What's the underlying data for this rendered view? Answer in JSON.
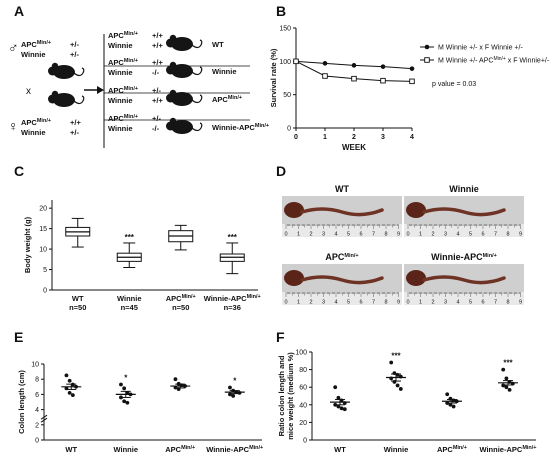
{
  "panels": {
    "A": {
      "label": "A",
      "cross_symbol": "x",
      "parents": [
        {
          "sex": "male",
          "lines": [
            [
              "APC",
              "Min/+",
              "+/-"
            ],
            [
              "Winnie",
              "",
              "+/-"
            ]
          ]
        },
        {
          "sex": "female",
          "lines": [
            [
              "APC",
              "Min/+",
              "+/+"
            ],
            [
              "Winnie",
              "",
              "+/-"
            ]
          ]
        }
      ],
      "offspring": [
        {
          "apc": "+/+",
          "winnie": "+/+",
          "name": "WT"
        },
        {
          "apc": "+/+",
          "winnie": "-/-",
          "name": "Winnie"
        },
        {
          "apc": "+/-",
          "winnie": "+/+",
          "name": "APC",
          "name_sup": "Min/+"
        },
        {
          "apc": "+/-",
          "winnie": "-/-",
          "name": "Winnie-APC",
          "name_sup": "Min/+"
        }
      ],
      "offspring_apc_label": "APC",
      "offspring_apc_sup": "Min/+",
      "offspring_winnie_label": "Winnie"
    },
    "B": {
      "label": "B"
    },
    "C": {
      "label": "C"
    },
    "D": {
      "label": "D",
      "photos": [
        {
          "title": "WT",
          "sup": ""
        },
        {
          "title": "Winnie",
          "sup": ""
        },
        {
          "title": "APC",
          "sup": "Min/+"
        },
        {
          "title": "Winnie-APC",
          "sup": "Min/+"
        }
      ],
      "ruler_ticks": [
        "0",
        "1",
        "2",
        "3",
        "4",
        "5",
        "6",
        "7",
        "8",
        "9"
      ]
    },
    "E": {
      "label": "E"
    },
    "F": {
      "label": "F"
    }
  },
  "chart_data": [
    {
      "panel": "B",
      "type": "line",
      "xlabel": "WEEK",
      "ylabel": "Survival rate (%)",
      "x": [
        0,
        1,
        2,
        3,
        4
      ],
      "xticks": [
        "0",
        "1",
        "2",
        "3",
        "4"
      ],
      "yticks": [
        "0",
        "50",
        "100",
        "150"
      ],
      "ylim": [
        0,
        150
      ],
      "xlim": [
        0,
        4
      ],
      "series": [
        {
          "name": "M Winnie +/- x F Winnie +/-",
          "marker": "filled-circle",
          "values": [
            100,
            97,
            94,
            92,
            89
          ]
        },
        {
          "name_parts": [
            "M Winnie +/- APC",
            "Min/+",
            " x F Winnie+/-"
          ],
          "marker": "open-square",
          "values": [
            100,
            78,
            74,
            71,
            70
          ]
        }
      ],
      "annotation": "p value = 0.03",
      "legend_position": "top-right"
    },
    {
      "panel": "C",
      "type": "boxplot",
      "ylabel": "Body weight (g)",
      "yticks": [
        "0",
        "5",
        "10",
        "15",
        "20"
      ],
      "ylim": [
        0,
        22
      ],
      "groups": [
        {
          "label": "WT",
          "n": "n=50",
          "sup": "",
          "min": 10.5,
          "q1": 13.2,
          "median": 14.2,
          "q3": 15.3,
          "max": 17.5,
          "sig": ""
        },
        {
          "label": "Winnie",
          "n": "n=45",
          "sup": "",
          "min": 5.5,
          "q1": 7.0,
          "median": 8.0,
          "q3": 9.0,
          "max": 11.5,
          "sig": "***"
        },
        {
          "label": "APC",
          "n": "n=50",
          "sup": "Min/+",
          "min": 9.8,
          "q1": 11.8,
          "median": 13.2,
          "q3": 14.5,
          "max": 15.8,
          "sig": ""
        },
        {
          "label": "Winnie-APC",
          "n": "n=36",
          "sup": "Min/+",
          "min": 4.0,
          "q1": 7.0,
          "median": 8.0,
          "q3": 8.8,
          "max": 11.5,
          "sig": "***"
        }
      ]
    },
    {
      "panel": "E",
      "type": "scatter",
      "ylabel": "Colon length (cm)",
      "yticks": [
        "0",
        "2",
        "4",
        "6",
        "8",
        "10"
      ],
      "ylim": [
        0,
        10
      ],
      "axis_break": true,
      "groups": [
        {
          "label": "WT",
          "sup": "",
          "mean": 7.0,
          "sem": 0.35,
          "points": [
            8.5,
            7.8,
            7.3,
            7.0,
            6.8,
            6.2,
            5.9
          ],
          "sig": ""
        },
        {
          "label": "Winnie",
          "sup": "",
          "mean": 6.0,
          "sem": 0.4,
          "points": [
            7.3,
            6.8,
            6.2,
            6.0,
            5.6,
            5.1,
            4.9
          ],
          "sig": "*"
        },
        {
          "label": "APC",
          "sup": "Min/+",
          "mean": 7.1,
          "sem": 0.25,
          "points": [
            8.0,
            7.4,
            7.2,
            7.1,
            6.9,
            6.7
          ],
          "sig": ""
        },
        {
          "label": "Winnie-APC",
          "sup": "Min/+",
          "mean": 6.3,
          "sem": 0.2,
          "points": [
            6.9,
            6.5,
            6.3,
            6.2,
            6.0,
            5.8
          ],
          "sig": "*"
        }
      ]
    },
    {
      "panel": "F",
      "type": "scatter",
      "ylabel_lines": [
        "Ratio colon length and",
        "mice weight (medium %)"
      ],
      "yticks": [
        "0",
        "20",
        "40",
        "60",
        "80",
        "100"
      ],
      "ylim": [
        0,
        100
      ],
      "groups": [
        {
          "label": "WT",
          "sup": "",
          "mean": 43,
          "sem": 3,
          "points": [
            60,
            48,
            45,
            42,
            40,
            38,
            36,
            35
          ],
          "sig": ""
        },
        {
          "label": "Winnie",
          "sup": "",
          "mean": 71,
          "sem": 4,
          "points": [
            88,
            76,
            74,
            72,
            70,
            66,
            62,
            58
          ],
          "sig": "***"
        },
        {
          "label": "APC",
          "sup": "Min/+",
          "mean": 44,
          "sem": 2,
          "points": [
            52,
            47,
            45,
            44,
            42,
            40,
            38
          ],
          "sig": ""
        },
        {
          "label": "Winnie-APC",
          "sup": "Min/+",
          "mean": 65,
          "sem": 2.5,
          "points": [
            80,
            70,
            66,
            64,
            62,
            60,
            57
          ],
          "sig": "***"
        }
      ]
    }
  ]
}
